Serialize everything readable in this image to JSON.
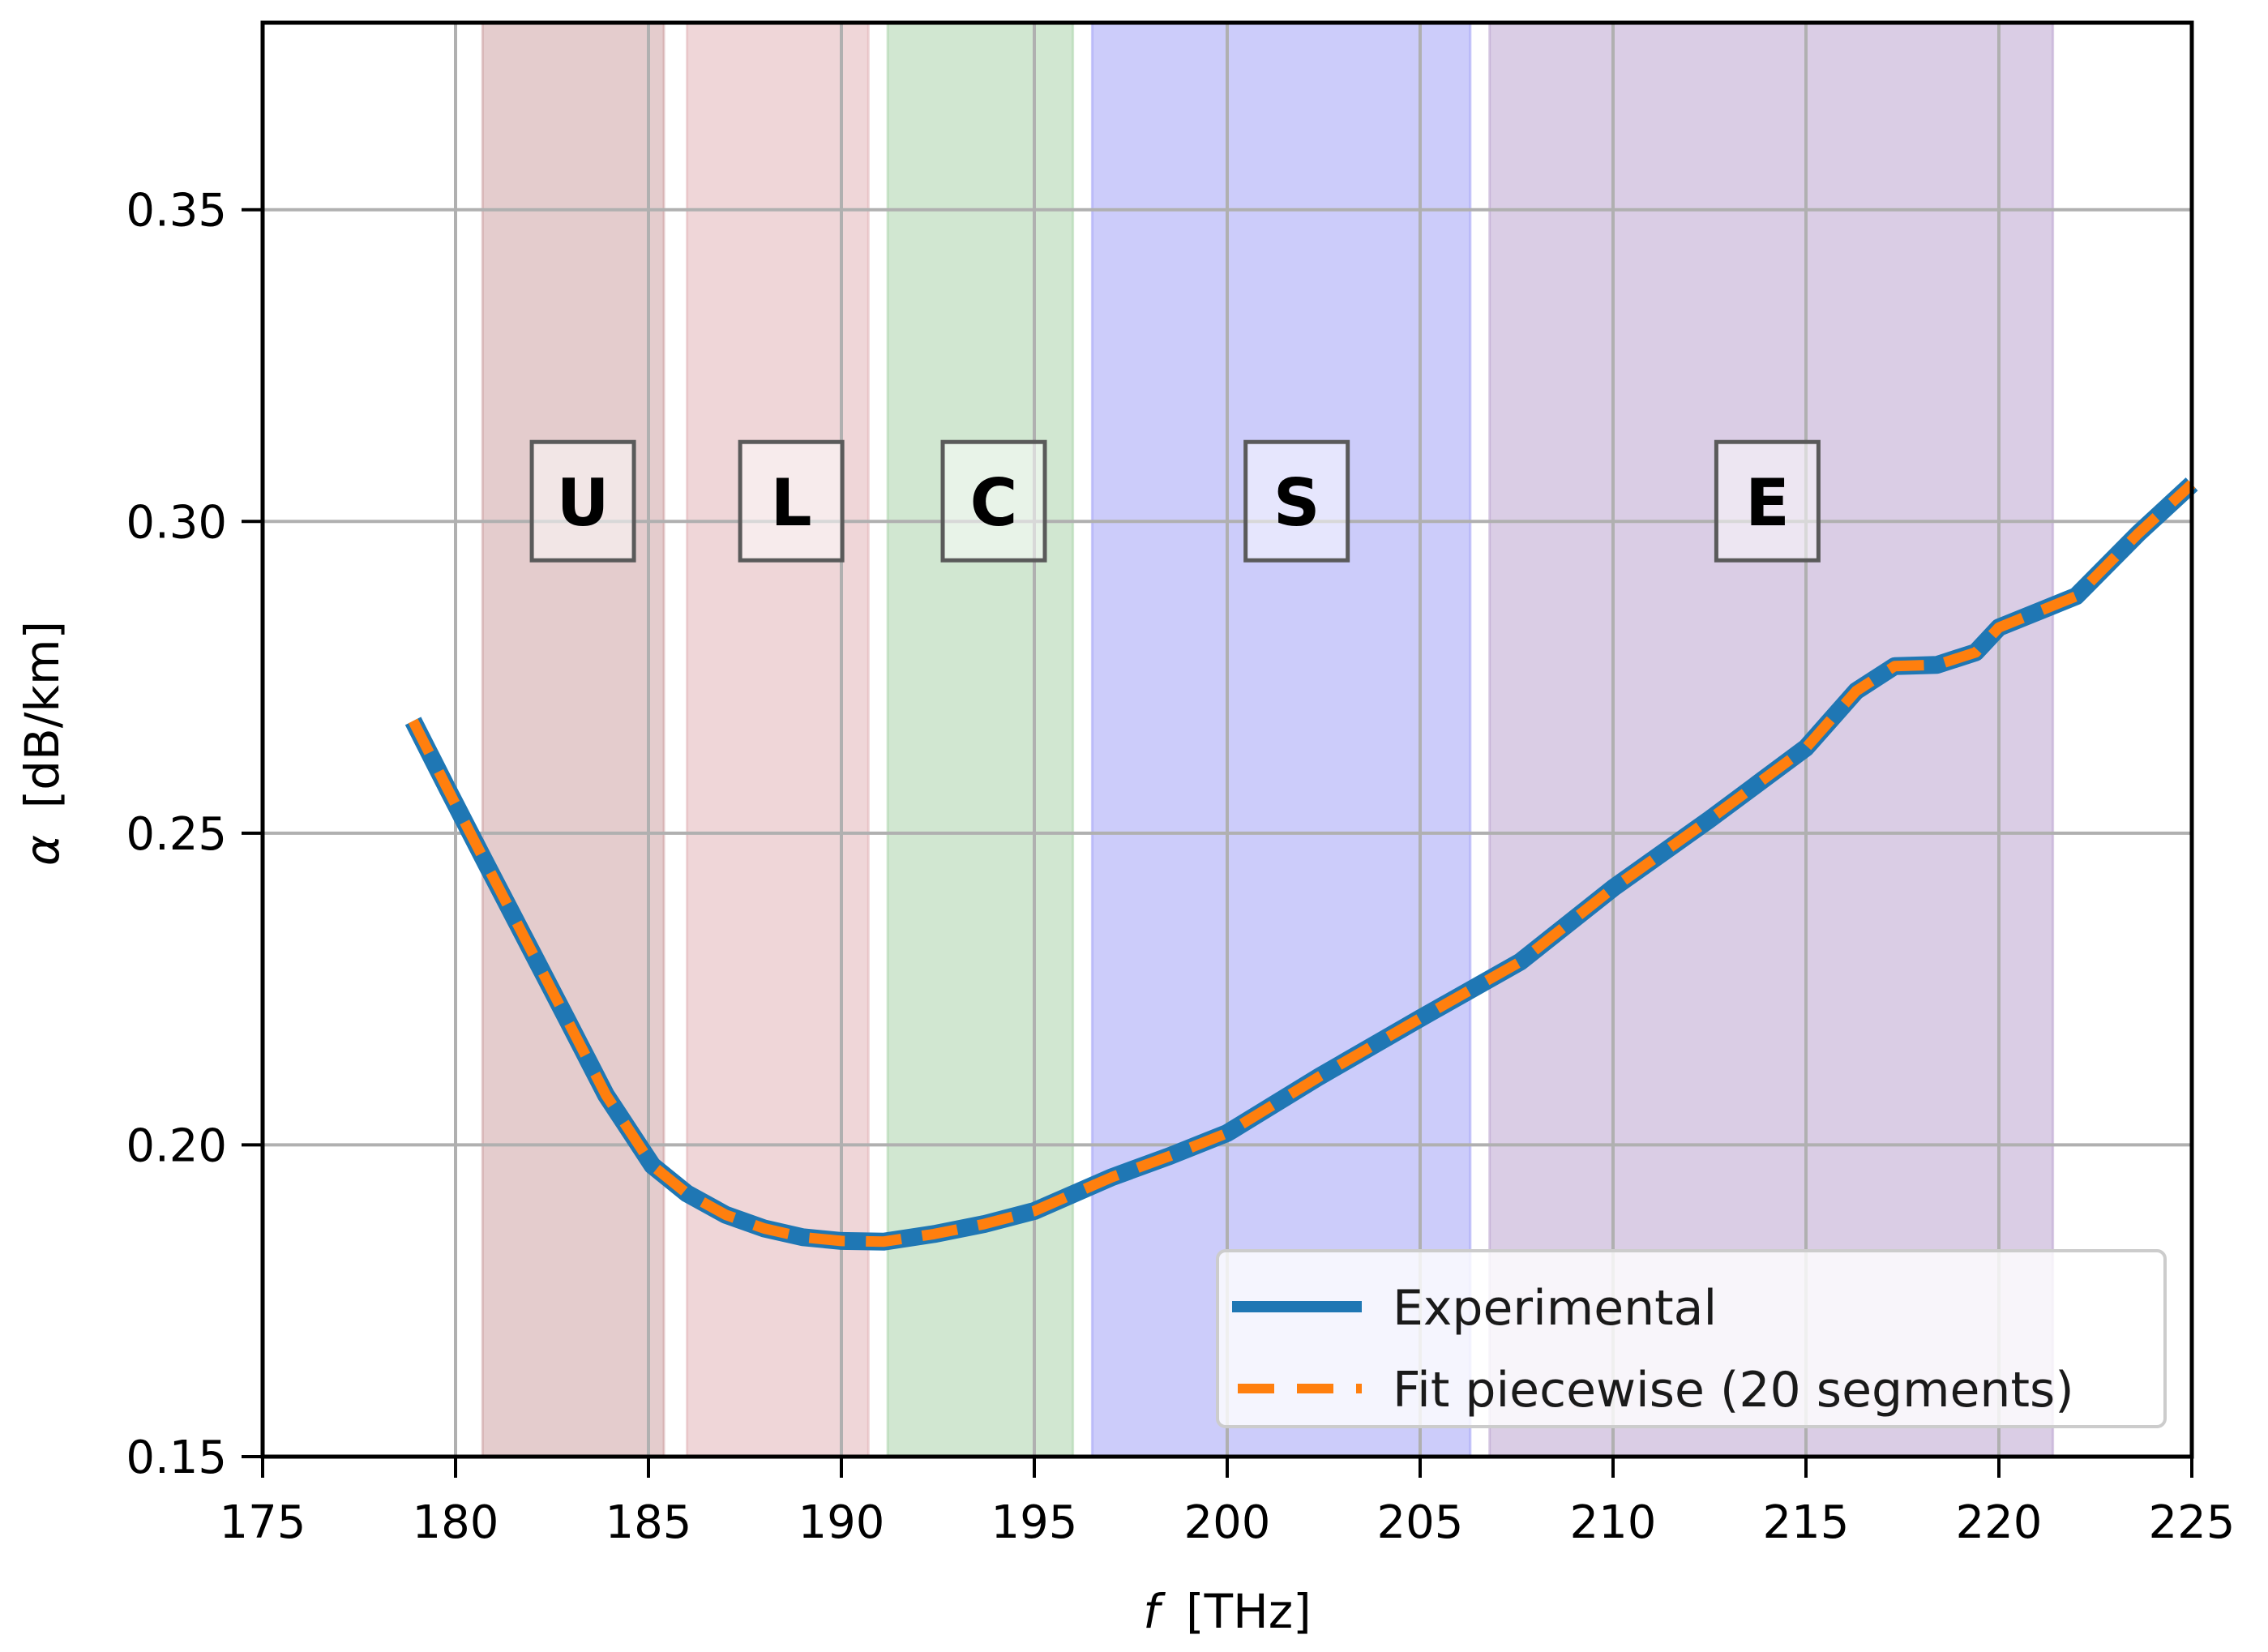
{
  "chart_data": {
    "type": "line",
    "title": "",
    "xlabel_italic": "f",
    "xlabel_unit": "[THz]",
    "xlabel": "f [THz]",
    "ylabel_symbol": "α",
    "ylabel_unit": "[dB/km]",
    "ylabel": "α [dB/km]",
    "xlim": [
      175,
      225
    ],
    "ylim": [
      0.15,
      0.38
    ],
    "xticks": [
      175,
      180,
      185,
      190,
      195,
      200,
      205,
      210,
      215,
      220,
      225
    ],
    "yticks": [
      0.15,
      0.2,
      0.25,
      0.3,
      0.35
    ],
    "ytick_labels": [
      "0.15",
      "0.20",
      "0.25",
      "0.30",
      "0.35"
    ],
    "grid": true,
    "legend_position": "lower right",
    "bands": [
      {
        "label": "U",
        "start": 180.7,
        "end": 185.4,
        "color": "#c9999c",
        "label_x": 183.3
      },
      {
        "label": "L",
        "start": 186.0,
        "end": 190.7,
        "color": "#e0aeb1",
        "label_x": 188.7
      },
      {
        "label": "C",
        "start": 191.2,
        "end": 196.0,
        "color": "#a3d0a3",
        "label_x": 193.95
      },
      {
        "label": "S",
        "start": 196.5,
        "end": 206.3,
        "color": "#9999f5",
        "label_x": 201.8
      },
      {
        "label": "E",
        "start": 206.8,
        "end": 221.4,
        "color": "#b59ccb",
        "label_x": 214.0
      }
    ],
    "band_label_y": 0.303,
    "x": [
      178.9,
      179.8,
      180.8,
      181.85,
      182.9,
      183.9,
      185.1,
      186.0,
      187.0,
      188.0,
      189.0,
      190.0,
      191.1,
      192.4,
      193.7,
      195.0,
      197.0,
      198.5,
      200.0,
      202.4,
      205.0,
      207.6,
      210.0,
      212.5,
      215.0,
      216.3,
      217.3,
      218.4,
      219.4,
      220.0,
      222.0,
      223.6,
      225.0
    ],
    "series": [
      {
        "name": "Experimental",
        "color": "#1f77b4",
        "style": "solid",
        "values": [
          0.268,
          0.257,
          0.245,
          0.2325,
          0.22,
          0.208,
          0.1967,
          0.1922,
          0.1888,
          0.1866,
          0.1852,
          0.1846,
          0.1845,
          0.1857,
          0.1873,
          0.1894,
          0.1948,
          0.1982,
          0.2019,
          0.211,
          0.2203,
          0.2294,
          0.2412,
          0.2522,
          0.2637,
          0.2728,
          0.2768,
          0.277,
          0.279,
          0.283,
          0.288,
          0.298,
          0.306
        ]
      },
      {
        "name": "Fit piecewise (20 segments)",
        "color": "#ff7f0e",
        "style": "dashed",
        "values": [
          0.268,
          0.257,
          0.245,
          0.2325,
          0.22,
          0.208,
          0.1967,
          0.1922,
          0.1888,
          0.1866,
          0.1852,
          0.1846,
          0.1845,
          0.1857,
          0.1873,
          0.1894,
          0.1948,
          0.1982,
          0.2019,
          0.211,
          0.2203,
          0.2294,
          0.2412,
          0.2522,
          0.2637,
          0.2728,
          0.2768,
          0.277,
          0.279,
          0.283,
          0.288,
          0.298,
          0.306
        ]
      }
    ]
  },
  "legend": {
    "items": [
      {
        "label": "Experimental",
        "color": "#1f77b4",
        "style": "solid"
      },
      {
        "label": "Fit piecewise (20 segments)",
        "color": "#ff7f0e",
        "style": "dashed"
      }
    ]
  },
  "colors": {
    "grid": "#b0b0b0",
    "axis": "#000000",
    "background": "#ffffff"
  }
}
